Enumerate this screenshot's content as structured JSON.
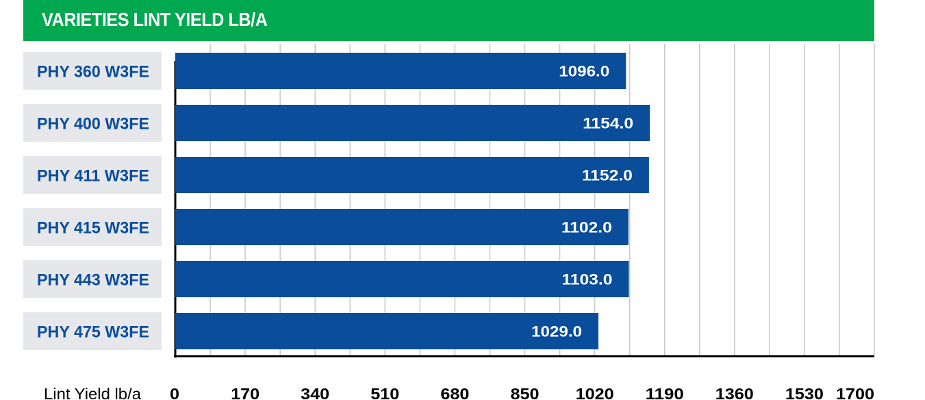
{
  "colors": {
    "header_bg": "#00a84f",
    "header_text": "#ffffff",
    "bar": "#0a4d9a",
    "bar_value_text": "#ffffff",
    "category_bg": "#e5e7eb",
    "category_text": "#0a4d9a",
    "grid": "#c8c8c8",
    "axis": "#000000",
    "tick_text": "#000000"
  },
  "header": {
    "title": "VARIETIES LINT YIELD LB/A"
  },
  "chart_data": {
    "type": "bar",
    "orientation": "horizontal",
    "title": "VARIETIES LINT YIELD LB/A",
    "xlabel": "Lint Yield lb/a",
    "ylabel": "",
    "categories": [
      "PHY 360 W3FE",
      "PHY 400 W3FE",
      "PHY 411 W3FE",
      "PHY 415 W3FE",
      "PHY 443 W3FE",
      "PHY 475 W3FE"
    ],
    "values": [
      1096.0,
      1154.0,
      1152.0,
      1102.0,
      1103.0,
      1029.0
    ],
    "value_labels": [
      "1096.0",
      "1154.0",
      "1152.0",
      "1102.0",
      "1103.0",
      "1029.0"
    ],
    "xlim": [
      0,
      1700
    ],
    "xticks": [
      0,
      170,
      340,
      510,
      680,
      850,
      1020,
      1190,
      1360,
      1530,
      1700
    ],
    "xtick_labels": [
      "0",
      "170",
      "340",
      "510",
      "680",
      "850",
      "1020",
      "1190",
      "1360",
      "1530",
      "1700"
    ],
    "grid": true,
    "legend": "none"
  }
}
